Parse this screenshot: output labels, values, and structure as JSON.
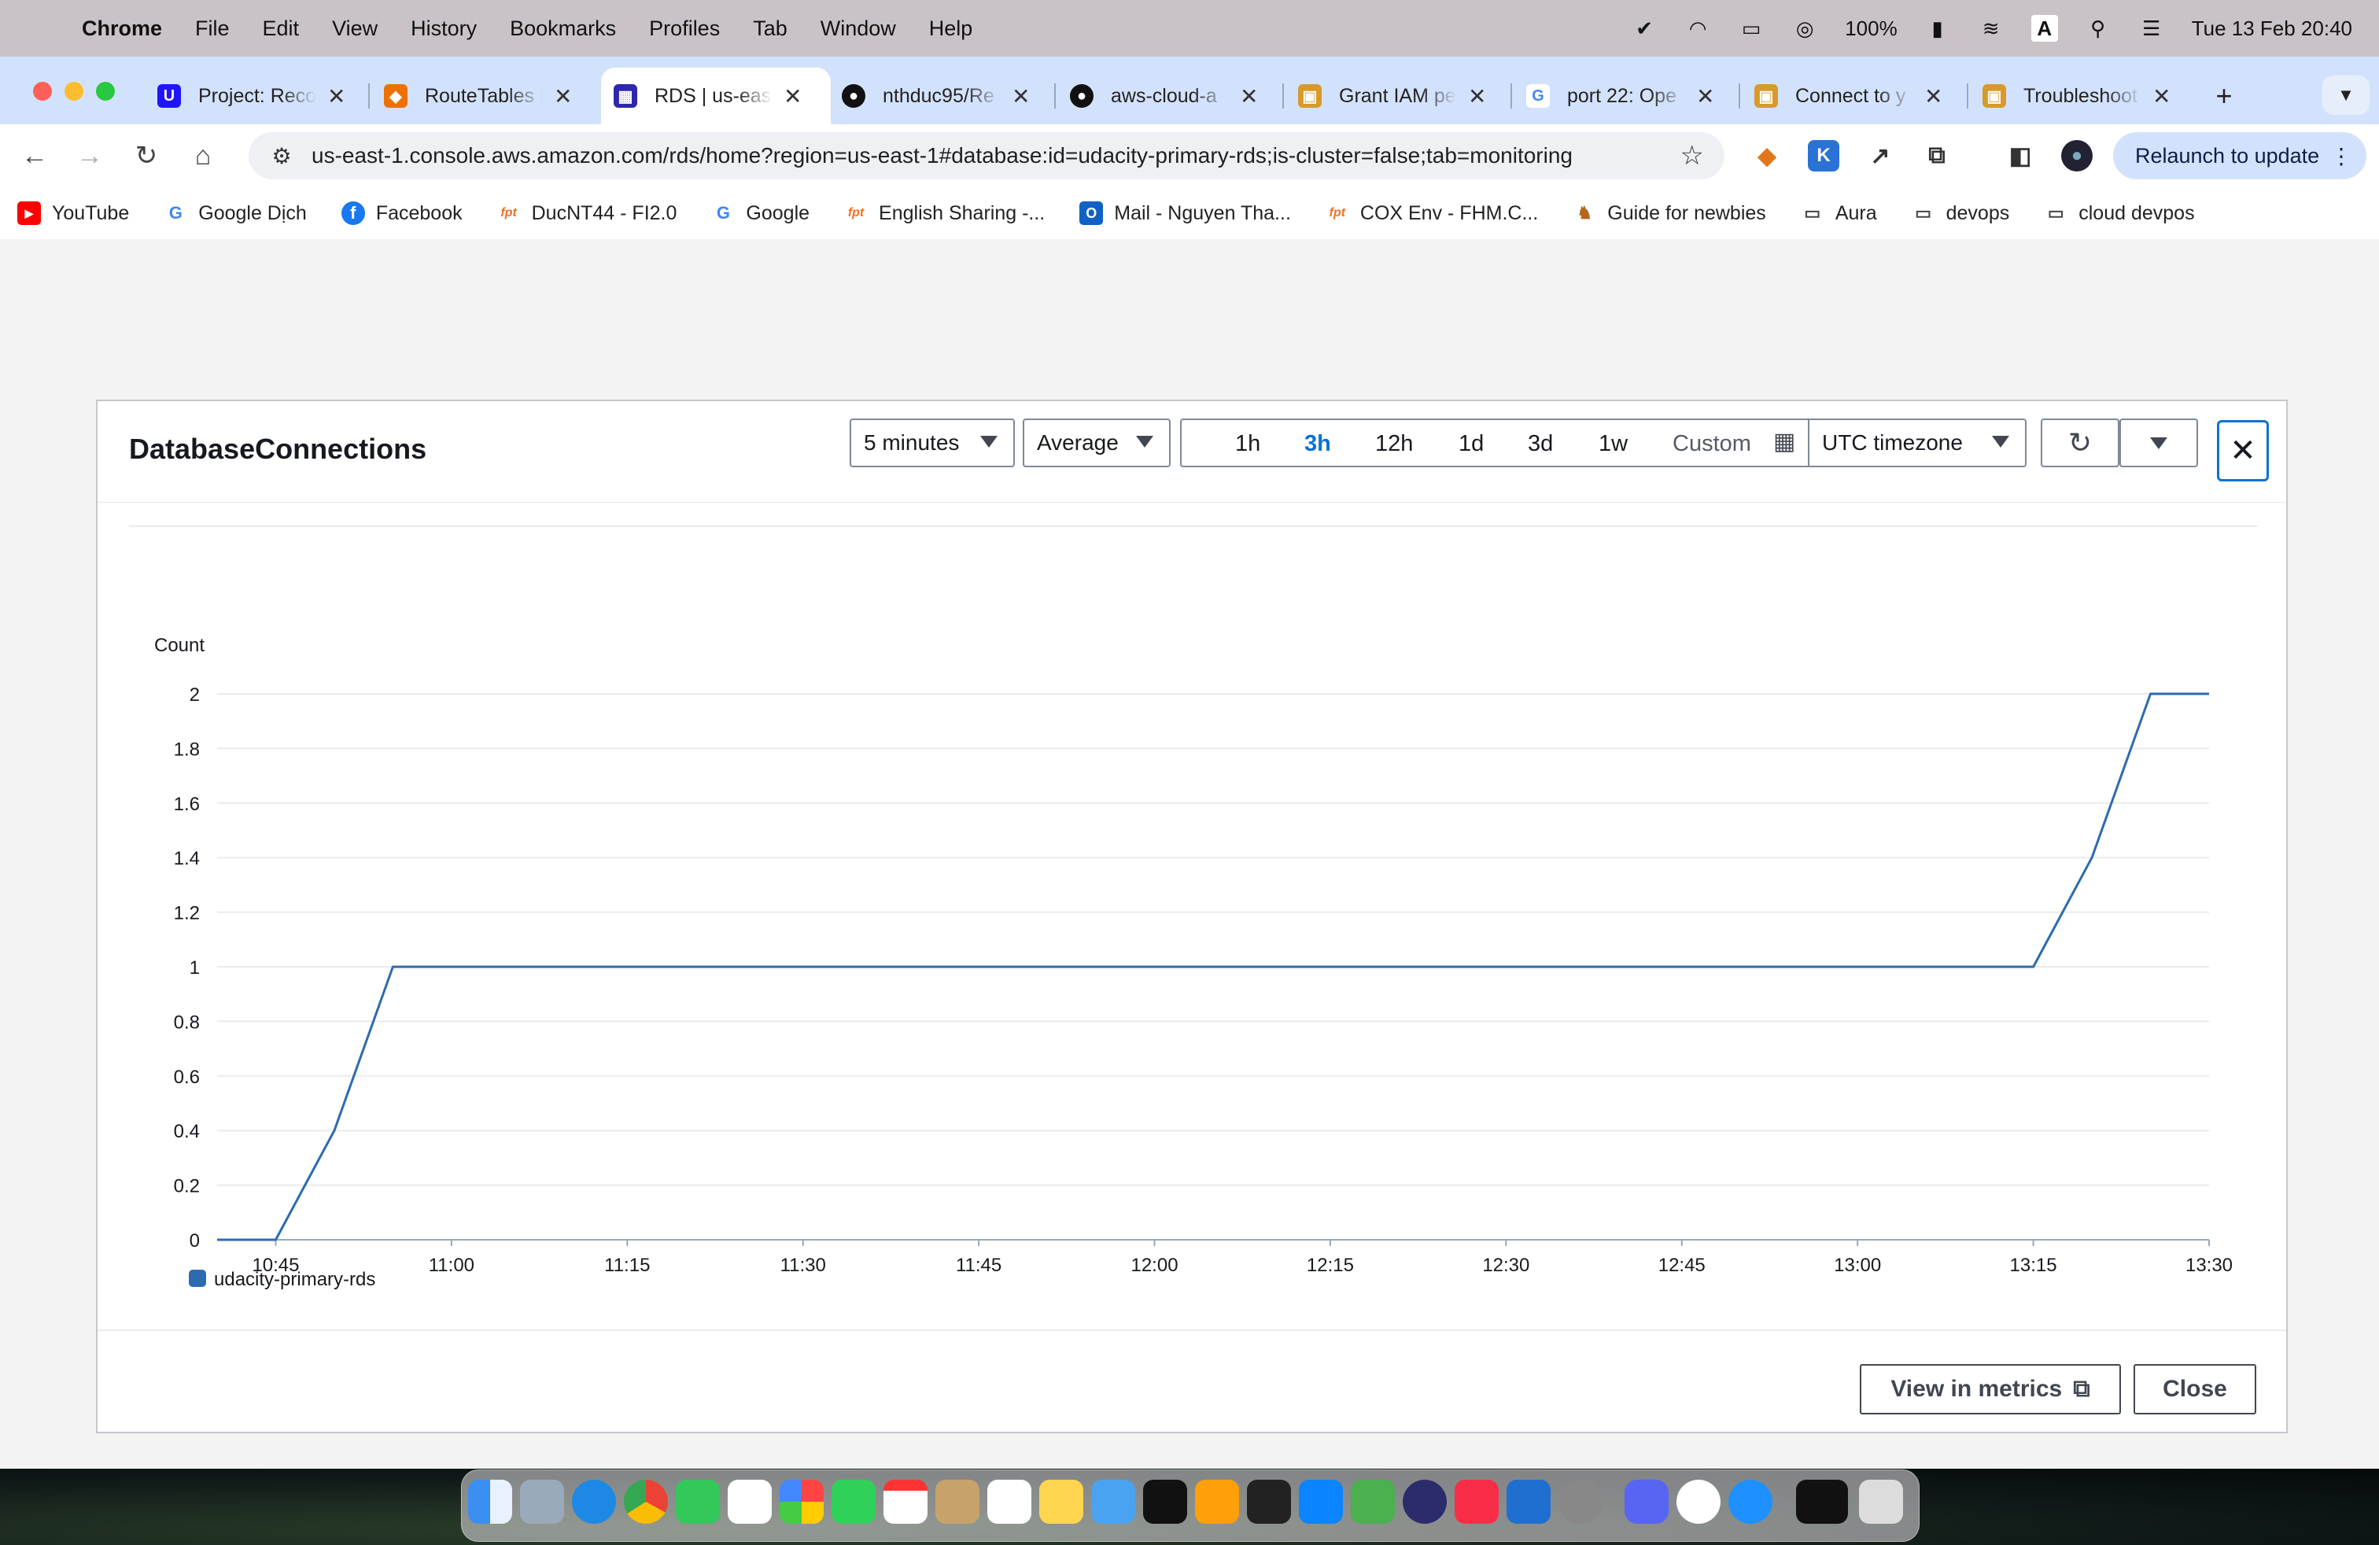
{
  "menubar": {
    "app": "Chrome",
    "items": [
      "File",
      "Edit",
      "View",
      "History",
      "Bookmarks",
      "Profiles",
      "Tab",
      "Window",
      "Help"
    ],
    "battery": "100%",
    "input_source": "A",
    "datetime": "Tue 13 Feb  20:40"
  },
  "tabs": [
    {
      "title": "Project: Reco",
      "icon": "udacity-icon",
      "color": "#2015ff"
    },
    {
      "title": "RouteTables |",
      "icon": "aws-vpc-icon",
      "color": "#ed7100"
    },
    {
      "title": "RDS | us-eas",
      "icon": "aws-rds-icon",
      "color": "#2e27ad"
    },
    {
      "title": "nthduc95/Re",
      "icon": "github-icon",
      "color": "#111111"
    },
    {
      "title": "aws-cloud-a",
      "icon": "github-icon",
      "color": "#111111"
    },
    {
      "title": "Grant IAM pe",
      "icon": "aws-docs-icon",
      "color": "#d79a2b"
    },
    {
      "title": "port 22: Ope",
      "icon": "google-icon",
      "color": "#4285f4"
    },
    {
      "title": "Connect to y",
      "icon": "aws-docs-icon",
      "color": "#d79a2b"
    },
    {
      "title": "Troubleshoot",
      "icon": "aws-docs-icon",
      "color": "#d79a2b"
    }
  ],
  "active_tab_index": 2,
  "toolbar": {
    "url": "us-east-1.console.aws.amazon.com/rds/home?region=us-east-1#database:id=udacity-primary-rds;is-cluster=false;tab=monitoring",
    "relaunch_label": "Relaunch to update"
  },
  "bookmarks": [
    {
      "label": "YouTube",
      "icon": "youtube-icon"
    },
    {
      "label": "Google Dịch",
      "icon": "google-translate-icon"
    },
    {
      "label": "Facebook",
      "icon": "facebook-icon"
    },
    {
      "label": "DucNT44 - FI2.0",
      "icon": "fpt-icon"
    },
    {
      "label": "Google",
      "icon": "google-icon"
    },
    {
      "label": "English Sharing -...",
      "icon": "fpt-icon"
    },
    {
      "label": "Mail - Nguyen Tha...",
      "icon": "outlook-icon"
    },
    {
      "label": "COX Env - FHM.C...",
      "icon": "fpt-icon"
    },
    {
      "label": "Guide for newbies",
      "icon": "camel-icon"
    },
    {
      "label": "Aura",
      "icon": "folder-icon"
    },
    {
      "label": "devops",
      "icon": "folder-icon"
    },
    {
      "label": "cloud devpos",
      "icon": "folder-icon"
    }
  ],
  "modal": {
    "title": "DatabaseConnections",
    "period": "5 minutes",
    "statistic": "Average",
    "ranges": [
      "1h",
      "3h",
      "12h",
      "1d",
      "3d",
      "1w"
    ],
    "active_range": "3h",
    "custom_label": "Custom",
    "timezone": "UTC timezone",
    "view_in_metrics_label": "View in metrics",
    "close_label": "Close"
  },
  "chart_data": {
    "type": "line",
    "title": "",
    "ylabel": "Count",
    "xlabel": "",
    "ylim": [
      0,
      2
    ],
    "yticks": [
      "0",
      "0.2",
      "0.4",
      "0.6",
      "0.8",
      "1",
      "1.2",
      "1.4",
      "1.6",
      "1.8",
      "2"
    ],
    "xticks": [
      "10:45",
      "11:00",
      "11:15",
      "11:30",
      "11:45",
      "12:00",
      "12:15",
      "12:30",
      "12:45",
      "13:00",
      "13:15",
      "13:30"
    ],
    "grid": true,
    "legend_placement": "bottom-left",
    "series": [
      {
        "name": "udacity-primary-rds",
        "color": "#2c6bb0",
        "x": [
          "10:40",
          "10:45",
          "10:50",
          "10:55",
          "11:00",
          "11:05",
          "11:10",
          "11:15",
          "11:20",
          "11:25",
          "11:30",
          "11:35",
          "11:40",
          "11:45",
          "11:50",
          "11:55",
          "12:00",
          "12:05",
          "12:10",
          "12:15",
          "12:20",
          "12:25",
          "12:30",
          "12:35",
          "12:40",
          "12:45",
          "12:50",
          "12:55",
          "13:00",
          "13:05",
          "13:10",
          "13:15",
          "13:20",
          "13:25",
          "13:30"
        ],
        "values": [
          0,
          0,
          0.4,
          1,
          1,
          1,
          1,
          1,
          1,
          1,
          1,
          1,
          1,
          1,
          1,
          1,
          1,
          1,
          1,
          1,
          1,
          1,
          1,
          1,
          1,
          1,
          1,
          1,
          1,
          1,
          1,
          1,
          1.4,
          2,
          2
        ]
      }
    ]
  }
}
